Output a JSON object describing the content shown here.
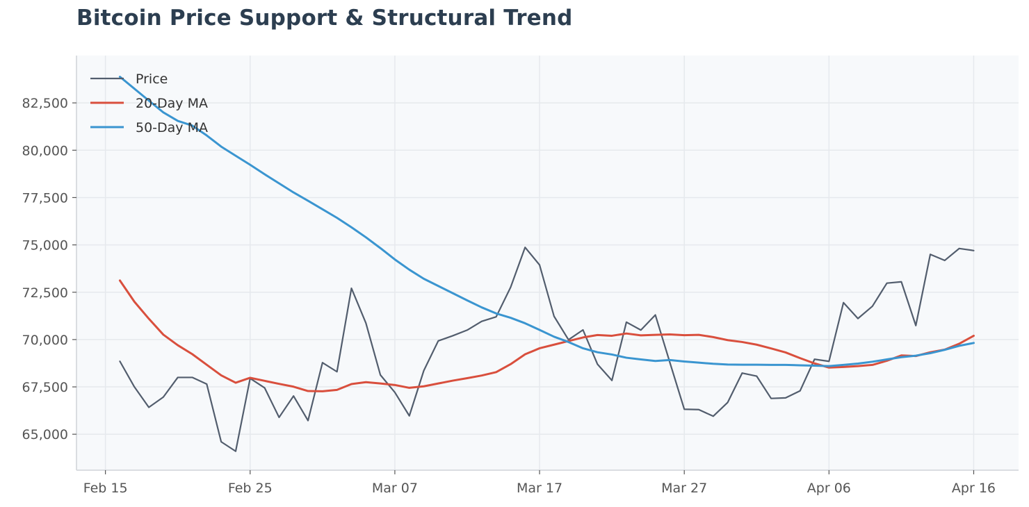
{
  "chart_data": {
    "type": "line",
    "title": "Bitcoin Price Support & Structural Trend",
    "xlabel": "",
    "ylabel": "",
    "x_tick_labels": [
      "Feb 15",
      "Feb 25",
      "Mar 07",
      "Mar 17",
      "Mar 27",
      "Apr 06",
      "Apr 16"
    ],
    "x_tick_days": [
      0,
      10,
      20,
      30,
      40,
      50,
      60
    ],
    "x_range_days": [
      -2,
      63.1
    ],
    "y_ticks": [
      65000,
      67500,
      70000,
      72500,
      75000,
      77500,
      80000,
      82500
    ],
    "ylim": [
      63100,
      85000
    ],
    "grid": true,
    "legend_position": "top-left",
    "x": [
      "Feb 16",
      "Feb 17",
      "Feb 18",
      "Feb 19",
      "Feb 20",
      "Feb 21",
      "Feb 22",
      "Feb 23",
      "Feb 24",
      "Feb 25",
      "Feb 26",
      "Feb 27",
      "Feb 28",
      "Mar 01",
      "Mar 02",
      "Mar 03",
      "Mar 04",
      "Mar 05",
      "Mar 06",
      "Mar 07",
      "Mar 08",
      "Mar 09",
      "Mar 10",
      "Mar 11",
      "Mar 12",
      "Mar 13",
      "Mar 14",
      "Mar 15",
      "Mar 16",
      "Mar 17",
      "Mar 18",
      "Mar 19",
      "Mar 20",
      "Mar 21",
      "Mar 22",
      "Mar 23",
      "Mar 24",
      "Mar 25",
      "Mar 26",
      "Mar 27",
      "Mar 28",
      "Mar 29",
      "Mar 30",
      "Mar 31",
      "Apr 01",
      "Apr 02",
      "Apr 03",
      "Apr 04",
      "Apr 05",
      "Apr 06",
      "Apr 07",
      "Apr 08",
      "Apr 09",
      "Apr 10",
      "Apr 11",
      "Apr 12",
      "Apr 13",
      "Apr 14",
      "Apr 15",
      "Apr 16"
    ],
    "series": [
      {
        "name": "Price",
        "color": "#525d6d",
        "values": [
          68850,
          67500,
          66420,
          66960,
          68000,
          68000,
          67650,
          64600,
          64100,
          67950,
          67450,
          65890,
          67020,
          65720,
          68780,
          68300,
          72710,
          70870,
          68130,
          67210,
          65970,
          68360,
          69930,
          70200,
          70500,
          70960,
          71200,
          72760,
          74870,
          73940,
          71230,
          69990,
          70510,
          68700,
          67840,
          70920,
          70500,
          71300,
          68800,
          66320,
          66300,
          65950,
          66680,
          68230,
          68070,
          66890,
          66920,
          67290,
          68960,
          68850,
          71950,
          71110,
          71760,
          72980,
          73050,
          70740,
          74500,
          74180,
          74810,
          74700
        ]
      },
      {
        "name": "20-Day MA",
        "color": "#d94f3d",
        "values": [
          73120,
          72000,
          71100,
          70260,
          69700,
          69230,
          68670,
          68110,
          67720,
          67980,
          67820,
          67660,
          67510,
          67280,
          67270,
          67340,
          67650,
          67750,
          67680,
          67600,
          67450,
          67530,
          67680,
          67830,
          67960,
          68100,
          68280,
          68700,
          69220,
          69540,
          69730,
          69920,
          70110,
          70240,
          70200,
          70320,
          70220,
          70250,
          70270,
          70230,
          70250,
          70130,
          69970,
          69870,
          69730,
          69530,
          69320,
          69020,
          68740,
          68520,
          68550,
          68600,
          68660,
          68880,
          69160,
          69130,
          69330,
          69470,
          69780,
          70200
        ]
      },
      {
        "name": "50-Day MA",
        "color": "#3a95d0",
        "values": [
          83880,
          83250,
          82620,
          82000,
          81550,
          81300,
          80780,
          80190,
          79710,
          79230,
          78730,
          78250,
          77770,
          77330,
          76880,
          76430,
          75930,
          75400,
          74830,
          74230,
          73690,
          73210,
          72830,
          72450,
          72070,
          71700,
          71380,
          71150,
          70860,
          70510,
          70150,
          69870,
          69540,
          69330,
          69210,
          69040,
          68950,
          68870,
          68920,
          68840,
          68780,
          68720,
          68680,
          68670,
          68670,
          68660,
          68660,
          68640,
          68620,
          68600,
          68660,
          68730,
          68830,
          68950,
          69070,
          69150,
          69280,
          69460,
          69670,
          69820
        ]
      }
    ]
  }
}
